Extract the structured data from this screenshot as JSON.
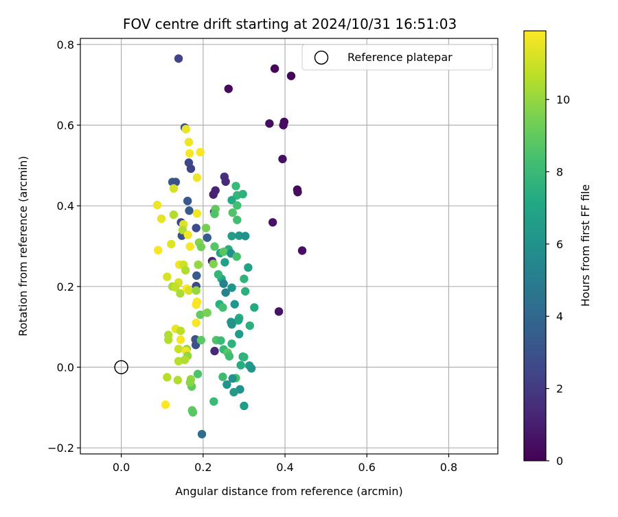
{
  "chart_data": {
    "type": "scatter",
    "title": "FOV centre drift starting at 2024/10/31 16:51:03",
    "xlabel": "Angular distance from reference (arcmin)",
    "ylabel": "Rotation from reference (arcmin)",
    "xlim": [
      -0.1,
      0.92
    ],
    "ylim": [
      -0.215,
      0.815
    ],
    "x_ticks": [
      0.0,
      0.2,
      0.4,
      0.6,
      0.8
    ],
    "x_tick_labels": [
      "0.0",
      "0.2",
      "0.4",
      "0.6",
      "0.8"
    ],
    "y_ticks": [
      -0.2,
      0.0,
      0.2,
      0.4,
      0.6,
      0.8
    ],
    "y_tick_labels": [
      "−0.2",
      "0.0",
      "0.2",
      "0.4",
      "0.6",
      "0.8"
    ],
    "grid": true,
    "legend": {
      "placement": "top-right",
      "entries": [
        "Reference platepar"
      ]
    },
    "reference_point": {
      "name": "Reference platepar",
      "x": 0.0,
      "y": 0.0,
      "marker": "open-circle"
    },
    "colorbar": {
      "label": "Hours from first FF file",
      "colormap": "viridis",
      "range": [
        0,
        11.9
      ],
      "ticks": [
        0,
        2,
        4,
        6,
        8,
        10
      ],
      "tick_labels": [
        "0",
        "2",
        "4",
        "6",
        "8",
        "10"
      ]
    },
    "points": [
      [
        0.375,
        0.74,
        0.2
      ],
      [
        0.415,
        0.722,
        0.2
      ],
      [
        0.262,
        0.69,
        0.3
      ],
      [
        0.362,
        0.604,
        0.4
      ],
      [
        0.398,
        0.608,
        0.3
      ],
      [
        0.396,
        0.6,
        0.4
      ],
      [
        0.394,
        0.516,
        0.5
      ],
      [
        0.43,
        0.44,
        0.3
      ],
      [
        0.431,
        0.434,
        0.4
      ],
      [
        0.37,
        0.359,
        0.6
      ],
      [
        0.442,
        0.289,
        0.5
      ],
      [
        0.385,
        0.138,
        0.6
      ],
      [
        0.14,
        0.765,
        2.4
      ],
      [
        0.225,
        0.428,
        1.1
      ],
      [
        0.23,
        0.438,
        1.2
      ],
      [
        0.252,
        0.472,
        1.6
      ],
      [
        0.255,
        0.46,
        1.4
      ],
      [
        0.227,
        0.385,
        1.3
      ],
      [
        0.222,
        0.263,
        1.2
      ],
      [
        0.228,
        0.04,
        1.3
      ],
      [
        0.155,
        0.594,
        2.8
      ],
      [
        0.125,
        0.459,
        3.2
      ],
      [
        0.133,
        0.459,
        3.0
      ],
      [
        0.165,
        0.507,
        2.5
      ],
      [
        0.17,
        0.492,
        2.3
      ],
      [
        0.162,
        0.412,
        3.3
      ],
      [
        0.166,
        0.388,
        3.4
      ],
      [
        0.146,
        0.359,
        2.5
      ],
      [
        0.148,
        0.326,
        2.9
      ],
      [
        0.183,
        0.345,
        2.7
      ],
      [
        0.21,
        0.321,
        3.5
      ],
      [
        0.184,
        0.227,
        3.4
      ],
      [
        0.183,
        0.201,
        2.6
      ],
      [
        0.181,
        0.069,
        3.0
      ],
      [
        0.182,
        0.055,
        2.9
      ],
      [
        0.28,
        0.449,
        8.0
      ],
      [
        0.283,
        0.426,
        7.8
      ],
      [
        0.297,
        0.429,
        7.6
      ],
      [
        0.27,
        0.414,
        7.2
      ],
      [
        0.283,
        0.401,
        8.3
      ],
      [
        0.272,
        0.383,
        8.6
      ],
      [
        0.283,
        0.365,
        8.3
      ],
      [
        0.27,
        0.325,
        6.6
      ],
      [
        0.288,
        0.326,
        6.2
      ],
      [
        0.303,
        0.325,
        6.0
      ],
      [
        0.262,
        0.292,
        7.4
      ],
      [
        0.242,
        0.283,
        7.0
      ],
      [
        0.25,
        0.286,
        8.8
      ],
      [
        0.268,
        0.282,
        5.9
      ],
      [
        0.282,
        0.274,
        8.4
      ],
      [
        0.253,
        0.26,
        6.7
      ],
      [
        0.31,
        0.247,
        6.8
      ],
      [
        0.245,
        0.219,
        7.2
      ],
      [
        0.237,
        0.23,
        7.8
      ],
      [
        0.3,
        0.219,
        7.7
      ],
      [
        0.27,
        0.197,
        6.1
      ],
      [
        0.25,
        0.207,
        5.2
      ],
      [
        0.255,
        0.185,
        5.3
      ],
      [
        0.303,
        0.188,
        7.5
      ],
      [
        0.277,
        0.156,
        6.2
      ],
      [
        0.24,
        0.156,
        7.5
      ],
      [
        0.248,
        0.148,
        8.3
      ],
      [
        0.288,
        0.122,
        7.4
      ],
      [
        0.286,
        0.116,
        7.0
      ],
      [
        0.268,
        0.112,
        6.3
      ],
      [
        0.27,
        0.106,
        6.0
      ],
      [
        0.314,
        0.103,
        7.5
      ],
      [
        0.325,
        0.148,
        7.2
      ],
      [
        0.288,
        0.082,
        6.5
      ],
      [
        0.27,
        0.058,
        7.6
      ],
      [
        0.232,
        0.067,
        8.6
      ],
      [
        0.243,
        0.066,
        8.0
      ],
      [
        0.25,
        0.044,
        7.9
      ],
      [
        0.26,
        0.036,
        8.8
      ],
      [
        0.264,
        0.027,
        8.2
      ],
      [
        0.297,
        0.026,
        7.3
      ],
      [
        0.3,
        0.025,
        7.7
      ],
      [
        0.292,
        0.005,
        7.3
      ],
      [
        0.313,
        0.004,
        6.4
      ],
      [
        0.318,
        -0.003,
        6.2
      ],
      [
        0.248,
        -0.024,
        8.2
      ],
      [
        0.28,
        -0.027,
        8.4
      ],
      [
        0.272,
        -0.028,
        6.0
      ],
      [
        0.258,
        -0.043,
        6.1
      ],
      [
        0.29,
        -0.055,
        6.0
      ],
      [
        0.275,
        -0.062,
        6.4
      ],
      [
        0.226,
        -0.085,
        8.0
      ],
      [
        0.3,
        -0.096,
        6.5
      ],
      [
        0.197,
        -0.166,
        4.2
      ],
      [
        0.23,
        0.392,
        9.0
      ],
      [
        0.228,
        0.38,
        8.6
      ],
      [
        0.207,
        0.345,
        9.4
      ],
      [
        0.19,
        0.309,
        9.7
      ],
      [
        0.195,
        0.298,
        9.3
      ],
      [
        0.228,
        0.299,
        8.7
      ],
      [
        0.188,
        0.254,
        10.0
      ],
      [
        0.225,
        0.256,
        9.6
      ],
      [
        0.193,
        0.13,
        9.0
      ],
      [
        0.21,
        0.135,
        9.5
      ],
      [
        0.195,
        0.067,
        8.9
      ],
      [
        0.187,
        -0.017,
        8.5
      ],
      [
        0.172,
        -0.048,
        9.0
      ],
      [
        0.17,
        -0.03,
        10.0
      ],
      [
        0.173,
        -0.107,
        9.0
      ],
      [
        0.175,
        -0.112,
        8.8
      ],
      [
        0.158,
        0.59,
        11.5
      ],
      [
        0.165,
        0.558,
        11.6
      ],
      [
        0.193,
        0.533,
        11.8
      ],
      [
        0.167,
        0.53,
        11.8
      ],
      [
        0.185,
        0.47,
        11.6
      ],
      [
        0.128,
        0.443,
        11.2
      ],
      [
        0.088,
        0.402,
        11.6
      ],
      [
        0.098,
        0.368,
        11.5
      ],
      [
        0.128,
        0.378,
        10.5
      ],
      [
        0.185,
        0.381,
        11.7
      ],
      [
        0.152,
        0.354,
        11.3
      ],
      [
        0.15,
        0.34,
        10.5
      ],
      [
        0.163,
        0.328,
        11.7
      ],
      [
        0.122,
        0.305,
        11.3
      ],
      [
        0.168,
        0.299,
        11.8
      ],
      [
        0.09,
        0.29,
        11.8
      ],
      [
        0.142,
        0.254,
        11.6
      ],
      [
        0.152,
        0.254,
        11.0
      ],
      [
        0.157,
        0.24,
        10.5
      ],
      [
        0.112,
        0.224,
        11.2
      ],
      [
        0.125,
        0.2,
        10.3
      ],
      [
        0.14,
        0.21,
        11.2
      ],
      [
        0.132,
        0.198,
        10.8
      ],
      [
        0.144,
        0.183,
        10.4
      ],
      [
        0.16,
        0.195,
        11.9
      ],
      [
        0.165,
        0.19,
        11.2
      ],
      [
        0.183,
        0.19,
        10.0
      ],
      [
        0.185,
        0.162,
        11.8
      ],
      [
        0.183,
        0.155,
        11.8
      ],
      [
        0.183,
        0.11,
        11.8
      ],
      [
        0.133,
        0.095,
        11.5
      ],
      [
        0.145,
        0.09,
        10.7
      ],
      [
        0.115,
        0.08,
        10.5
      ],
      [
        0.115,
        0.068,
        10.5
      ],
      [
        0.145,
        0.068,
        11.8
      ],
      [
        0.14,
        0.045,
        10.9
      ],
      [
        0.16,
        0.045,
        10.0
      ],
      [
        0.158,
        0.04,
        11.6
      ],
      [
        0.162,
        0.028,
        10.0
      ],
      [
        0.14,
        0.015,
        10.6
      ],
      [
        0.155,
        0.018,
        10.5
      ],
      [
        0.112,
        -0.025,
        10.6
      ],
      [
        0.138,
        -0.032,
        10.5
      ],
      [
        0.168,
        -0.038,
        9.8
      ],
      [
        0.108,
        -0.093,
        11.9
      ]
    ]
  }
}
